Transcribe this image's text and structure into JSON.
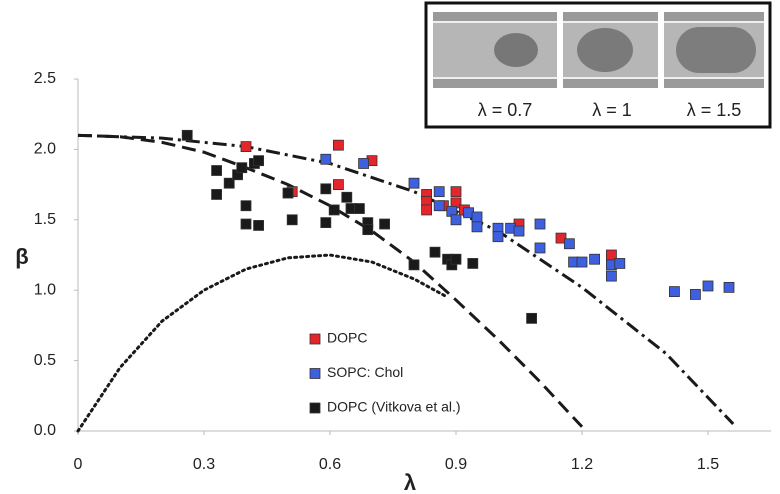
{
  "chart_data": {
    "type": "scatter",
    "x_label": "λ",
    "y_label": "β",
    "xlim": [
      0,
      1.65
    ],
    "ylim": [
      0,
      2.5
    ],
    "xticks": [
      0,
      0.3,
      0.6,
      0.9,
      1.2,
      1.5
    ],
    "yticks": [
      {
        "value": 0,
        "label": "0.0"
      },
      0.5,
      {
        "value": 1,
        "label": "1.0"
      },
      1.5,
      {
        "value": 2,
        "label": "2.0"
      },
      2.5
    ],
    "series": [
      {
        "name": "DOPC",
        "color": "#e3262b",
        "x": [
          0.4,
          0.62,
          0.62,
          0.7,
          0.83,
          0.83,
          0.83,
          0.87,
          0.9,
          0.9,
          0.92,
          1.05,
          1.15,
          1.27,
          0.51
        ],
        "values": [
          2.02,
          2.03,
          1.75,
          1.92,
          1.68,
          1.63,
          1.57,
          1.6,
          1.7,
          1.62,
          1.57,
          1.47,
          1.37,
          1.25,
          1.7
        ]
      },
      {
        "name": "SOPC: Chol",
        "color": "#3d5fe0",
        "x": [
          0.59,
          0.68,
          0.8,
          0.86,
          0.86,
          0.89,
          0.9,
          0.93,
          0.95,
          0.95,
          1.0,
          1.0,
          1.03,
          1.05,
          1.1,
          1.1,
          1.17,
          1.18,
          1.2,
          1.23,
          1.27,
          1.27,
          1.29,
          1.42,
          1.47,
          1.5,
          1.55
        ],
        "values": [
          1.93,
          1.9,
          1.76,
          1.7,
          1.6,
          1.56,
          1.5,
          1.55,
          1.52,
          1.45,
          1.44,
          1.38,
          1.44,
          1.42,
          1.47,
          1.3,
          1.33,
          1.2,
          1.2,
          1.22,
          1.18,
          1.1,
          1.19,
          0.99,
          0.97,
          1.03,
          1.02
        ]
      },
      {
        "name": "DOPC (Vitkova et al.)",
        "color": "#1a1a1a",
        "x": [
          0.26,
          0.33,
          0.33,
          0.36,
          0.38,
          0.39,
          0.42,
          0.43,
          0.4,
          0.4,
          0.43,
          0.5,
          0.51,
          0.59,
          0.59,
          0.61,
          0.64,
          0.65,
          0.67,
          0.69,
          0.69,
          0.73,
          0.8,
          0.85,
          0.88,
          0.89,
          0.9,
          0.94,
          1.08
        ],
        "values": [
          2.1,
          1.85,
          1.68,
          1.76,
          1.82,
          1.87,
          1.9,
          1.92,
          1.6,
          1.47,
          1.46,
          1.69,
          1.5,
          1.72,
          1.48,
          1.57,
          1.66,
          1.58,
          1.58,
          1.48,
          1.43,
          1.47,
          1.18,
          1.27,
          1.22,
          1.18,
          1.22,
          1.19,
          0.8
        ]
      }
    ],
    "curves": [
      {
        "style": "dashed",
        "color": "#1a1a1a",
        "x": [
          0,
          0.1,
          0.2,
          0.3,
          0.4,
          0.5,
          0.6,
          0.7,
          0.8,
          0.9,
          1.0,
          1.1,
          1.2
        ],
        "values": [
          2.1,
          2.09,
          2.05,
          1.98,
          1.87,
          1.75,
          1.6,
          1.42,
          1.2,
          0.93,
          0.65,
          0.35,
          0.03
        ]
      },
      {
        "style": "dashdot",
        "color": "#1a1a1a",
        "x": [
          0,
          0.2,
          0.4,
          0.6,
          0.8,
          1.0,
          1.2,
          1.4,
          1.56
        ],
        "values": [
          2.1,
          2.08,
          2.02,
          1.9,
          1.7,
          1.42,
          1.02,
          0.55,
          0.05
        ]
      },
      {
        "style": "dotted",
        "color": "#1a1a1a",
        "x": [
          0,
          0.1,
          0.2,
          0.3,
          0.4,
          0.5,
          0.6,
          0.7,
          0.8,
          0.88
        ],
        "values": [
          0,
          0.45,
          0.78,
          1.0,
          1.15,
          1.23,
          1.25,
          1.2,
          1.08,
          0.95
        ]
      }
    ],
    "inset_labels": [
      "λ = 0.7",
      "λ = 1",
      "λ = 1.5"
    ]
  }
}
